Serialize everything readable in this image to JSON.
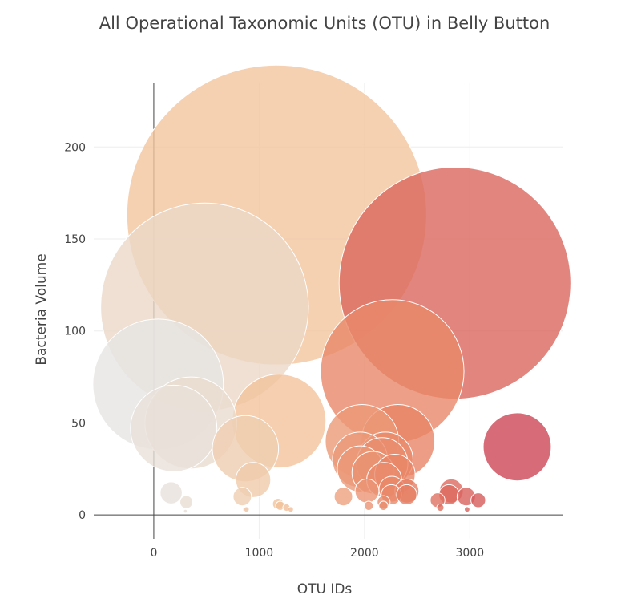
{
  "chart_data": {
    "type": "scatter",
    "title": "All Operational Taxonomic Units (OTU) in Belly Button",
    "xlabel": "OTU IDs",
    "ylabel": "Bacteria Volume",
    "xlim": [
      -570,
      3880
    ],
    "ylim": [
      -13,
      235
    ],
    "x_ticks": [
      0,
      1000,
      2000,
      3000
    ],
    "y_ticks": [
      0,
      50,
      100,
      150,
      200
    ],
    "grid": true,
    "legend": "none",
    "colorscale": {
      "min": 0,
      "max": 3500,
      "colors": [
        "#e6e6e6",
        "#f2c49d",
        "#e88466",
        "#cc4455"
      ]
    },
    "series": [
      {
        "x": [
          1167,
          2859,
          482,
          2264,
          41,
          1189,
          352,
          189,
          2318,
          1977,
          3450,
          2199,
          1958,
          2168,
          2082,
          870,
          2289,
          2187,
          944,
          2260,
          2403,
          2824,
          1960,
          2024,
          165,
          2966,
          2255,
          2401,
          2802,
          1800,
          840,
          2182,
          2694,
          3080,
          2040,
          2180,
          309,
          1180,
          1200,
          1260,
          2720,
          870,
          1300,
          2974,
          880,
          300
        ],
        "y": [
          163,
          126,
          113,
          78,
          71,
          51,
          50,
          47,
          40,
          40,
          37,
          30,
          30,
          28,
          23,
          36,
          22,
          19,
          19,
          14,
          13,
          13,
          25,
          13,
          12,
          10,
          11,
          11,
          11,
          10,
          10,
          7,
          8,
          8,
          5,
          5,
          7,
          6,
          5,
          4,
          4,
          3,
          3,
          3,
          3,
          2
        ],
        "sizes": [
          163,
          126,
          113,
          78,
          71,
          51,
          50,
          47,
          40,
          40,
          37,
          30,
          30,
          28,
          23,
          36,
          22,
          19,
          19,
          14,
          13,
          13,
          25,
          13,
          12,
          10,
          11,
          11,
          11,
          10,
          10,
          7,
          8,
          8,
          5,
          5,
          7,
          6,
          5,
          4,
          4,
          3,
          3,
          3,
          3,
          2
        ]
      }
    ]
  }
}
